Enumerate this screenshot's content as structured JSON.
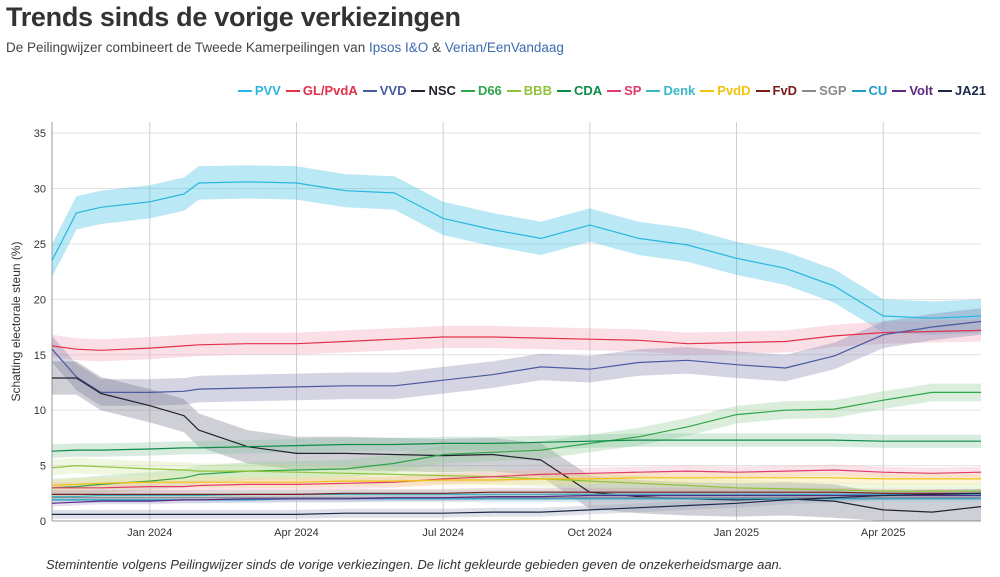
{
  "header": {
    "title": "Trends sinds de vorige verkiezingen",
    "subtitle_prefix": "De Peilingwijzer combineert de Tweede Kamerpeilingen van",
    "link_ipsos": "Ipsos I&O",
    "amp": "&",
    "link_verian": "Verian/EenVandaag"
  },
  "caption": "Stemintentie volgens Peilingwijzer sinds de vorige verkiezingen. De licht gekleurde gebieden geven de onzekerheidsmarge aan.",
  "chart_data": {
    "type": "line",
    "title": "Trends sinds de vorige verkiezingen",
    "ylabel": "Schatting electorale steun (%)",
    "xlabel": "",
    "ylim": [
      0,
      36
    ],
    "xlim": [
      0,
      19
    ],
    "y_ticks": [
      0,
      5,
      10,
      15,
      20,
      25,
      30,
      35
    ],
    "x_ticks": [
      {
        "label": "Jan 2024",
        "x": 2
      },
      {
        "label": "Apr 2024",
        "x": 5
      },
      {
        "label": "Jul 2024",
        "x": 8
      },
      {
        "label": "Oct 2024",
        "x": 11
      },
      {
        "label": "Jan 2025",
        "x": 14
      },
      {
        "label": "Apr 2025",
        "x": 17
      }
    ],
    "x_unit": "months since Nov 2023",
    "x": [
      0,
      0.5,
      1,
      2,
      2.7,
      3,
      4,
      5,
      6,
      7,
      8,
      9,
      10,
      11,
      12,
      13,
      14,
      15,
      16,
      17,
      18,
      19
    ],
    "grid": true,
    "legend_position": "top-right",
    "series": [
      {
        "name": "PVV",
        "color": "#29b6e0",
        "band_color": "#29b6e0",
        "margin": 1.5,
        "values": [
          23.5,
          27.8,
          28.3,
          28.8,
          29.5,
          30.5,
          30.6,
          30.5,
          29.8,
          29.6,
          27.3,
          26.3,
          25.5,
          26.7,
          25.5,
          24.9,
          23.7,
          22.8,
          21.2,
          18.5,
          18.3,
          18.5
        ]
      },
      {
        "name": "GL/PvdA",
        "color": "#e3304b",
        "band_color": "#f0a0b0",
        "margin": 1.0,
        "values": [
          15.8,
          15.5,
          15.4,
          15.6,
          15.8,
          15.9,
          16.0,
          16.0,
          16.2,
          16.4,
          16.6,
          16.6,
          16.5,
          16.4,
          16.3,
          16.0,
          16.1,
          16.2,
          16.7,
          17.0,
          17.1,
          17.2
        ]
      },
      {
        "name": "VVD",
        "color": "#4a5a9e",
        "band_color": "#7a7aa8",
        "margin": 1.2,
        "values": [
          15.5,
          13.0,
          11.6,
          11.6,
          11.7,
          11.9,
          12.0,
          12.1,
          12.2,
          12.2,
          12.7,
          13.2,
          13.9,
          13.7,
          14.3,
          14.5,
          14.1,
          13.8,
          14.9,
          16.8,
          17.5,
          18.0
        ]
      },
      {
        "name": "NSC",
        "color": "#222230",
        "band_color": "#6b6b80",
        "margin": 1.5,
        "values": [
          12.9,
          12.9,
          11.5,
          10.4,
          9.5,
          8.2,
          6.7,
          6.1,
          6.1,
          6.0,
          5.9,
          6.0,
          5.5,
          2.6,
          2.2,
          2.0,
          1.9,
          2.0,
          1.8,
          1.0,
          0.8,
          1.3
        ]
      },
      {
        "name": "D66",
        "color": "#2fa64a",
        "band_color": "#8bc98f",
        "margin": 0.8,
        "values": [
          3.0,
          3.1,
          3.3,
          3.6,
          3.9,
          4.2,
          4.5,
          4.6,
          4.7,
          5.2,
          6.0,
          6.2,
          6.4,
          7.0,
          7.6,
          8.5,
          9.6,
          10.0,
          10.1,
          10.9,
          11.6,
          11.6
        ]
      },
      {
        "name": "BBB",
        "color": "#8fc33b",
        "band_color": "#cfe5a0",
        "margin": 0.7,
        "values": [
          4.8,
          5.0,
          4.9,
          4.7,
          4.6,
          4.5,
          4.5,
          4.4,
          4.3,
          4.2,
          4.1,
          4.0,
          3.8,
          3.6,
          3.4,
          3.2,
          3.0,
          2.9,
          2.8,
          2.7,
          2.7,
          2.7
        ]
      },
      {
        "name": "CDA",
        "color": "#0c8b46",
        "band_color": "#82c49c",
        "margin": 0.6,
        "values": [
          6.3,
          6.4,
          6.4,
          6.5,
          6.6,
          6.6,
          6.7,
          6.8,
          6.9,
          6.9,
          7.0,
          7.0,
          7.1,
          7.2,
          7.3,
          7.3,
          7.3,
          7.3,
          7.3,
          7.2,
          7.2,
          7.2
        ]
      },
      {
        "name": "SP",
        "color": "#e03c6c",
        "band_color": "#f2a9bd",
        "margin": 0.5,
        "values": [
          3.0,
          3.0,
          3.0,
          3.1,
          3.1,
          3.2,
          3.3,
          3.3,
          3.4,
          3.5,
          3.8,
          4.0,
          4.2,
          4.3,
          4.4,
          4.5,
          4.4,
          4.5,
          4.6,
          4.4,
          4.3,
          4.4
        ]
      },
      {
        "name": "Denk",
        "color": "#3ab8c8",
        "band_color": "#a8dde4",
        "margin": 0.4,
        "values": [
          2.2,
          2.2,
          2.3,
          2.3,
          2.3,
          2.3,
          2.4,
          2.4,
          2.4,
          2.4,
          2.4,
          2.4,
          2.4,
          2.4,
          2.4,
          2.4,
          2.4,
          2.4,
          2.4,
          2.4,
          2.4,
          2.4
        ]
      },
      {
        "name": "PvdD",
        "color": "#f2c20f",
        "band_color": "#f8e08a",
        "margin": 0.5,
        "values": [
          3.2,
          3.3,
          3.4,
          3.5,
          3.5,
          3.5,
          3.5,
          3.5,
          3.6,
          3.6,
          3.7,
          3.7,
          3.8,
          3.8,
          3.9,
          3.9,
          3.9,
          3.9,
          3.9,
          3.8,
          3.8,
          3.8
        ]
      },
      {
        "name": "FvD",
        "color": "#7a1c1c",
        "band_color": "#c99a9a",
        "margin": 0.4,
        "values": [
          2.4,
          2.4,
          2.4,
          2.4,
          2.4,
          2.4,
          2.4,
          2.4,
          2.5,
          2.5,
          2.5,
          2.6,
          2.6,
          2.6,
          2.6,
          2.6,
          2.6,
          2.6,
          2.6,
          2.5,
          2.5,
          2.5
        ]
      },
      {
        "name": "SGP",
        "color": "#8a8a8a",
        "band_color": "#c8c8c8",
        "margin": 0.3,
        "values": [
          2.1,
          2.1,
          2.1,
          2.1,
          2.1,
          2.1,
          2.1,
          2.1,
          2.1,
          2.1,
          2.1,
          2.1,
          2.1,
          2.1,
          2.1,
          2.1,
          2.1,
          2.1,
          2.1,
          2.1,
          2.1,
          2.1
        ]
      },
      {
        "name": "CU",
        "color": "#1f9bc4",
        "band_color": "#9fd0e3",
        "margin": 0.3,
        "values": [
          1.9,
          1.9,
          1.9,
          1.9,
          1.9,
          1.9,
          1.9,
          2.0,
          2.0,
          2.0,
          2.0,
          2.0,
          2.0,
          2.0,
          2.0,
          2.0,
          2.0,
          2.0,
          2.0,
          2.0,
          2.0,
          2.0
        ]
      },
      {
        "name": "Volt",
        "color": "#5a2a82",
        "band_color": "#b9a3cc",
        "margin": 0.3,
        "values": [
          1.6,
          1.7,
          1.8,
          1.8,
          1.9,
          1.9,
          2.0,
          2.0,
          2.0,
          2.1,
          2.1,
          2.2,
          2.2,
          2.3,
          2.3,
          2.3,
          2.3,
          2.3,
          2.3,
          2.3,
          2.3,
          2.3
        ]
      },
      {
        "name": "JA21",
        "color": "#1b2a4a",
        "band_color": "#9aa3b8",
        "margin": 0.4,
        "values": [
          0.6,
          0.6,
          0.6,
          0.6,
          0.6,
          0.6,
          0.6,
          0.6,
          0.7,
          0.7,
          0.7,
          0.8,
          0.8,
          1.0,
          1.2,
          1.4,
          1.6,
          1.9,
          2.1,
          2.3,
          2.4,
          2.5
        ]
      }
    ]
  }
}
